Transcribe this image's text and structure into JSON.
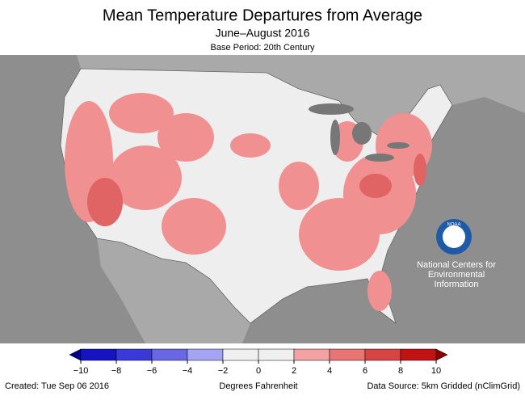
{
  "header": {
    "title": "Mean Temperature Departures from Average",
    "subtitle": "June–August 2016",
    "base_period": "Base Period: 20th Century"
  },
  "logo": {
    "mark": "NOAA",
    "lines": [
      "National Centers for",
      "Environmental",
      "Information"
    ]
  },
  "legend": {
    "label": "Degrees Fahrenheit",
    "ticks": [
      {
        "value": -10,
        "label": "−10"
      },
      {
        "value": -8,
        "label": "−8"
      },
      {
        "value": -6,
        "label": "−6"
      },
      {
        "value": -4,
        "label": "−4"
      },
      {
        "value": -2,
        "label": "−2"
      },
      0,
      2,
      4,
      6,
      8,
      10
    ],
    "colors": [
      "#1414c0",
      "#3a3ad8",
      "#6868e4",
      "#a4a4f2",
      "#efefef",
      "#efefef",
      "#f2a2a2",
      "#e87474",
      "#d84444",
      "#c01414"
    ]
  },
  "footer": {
    "created": "Created: Tue Sep 06 2016",
    "source": "Data Source: 5km Gridded (nClimGrid)"
  }
}
